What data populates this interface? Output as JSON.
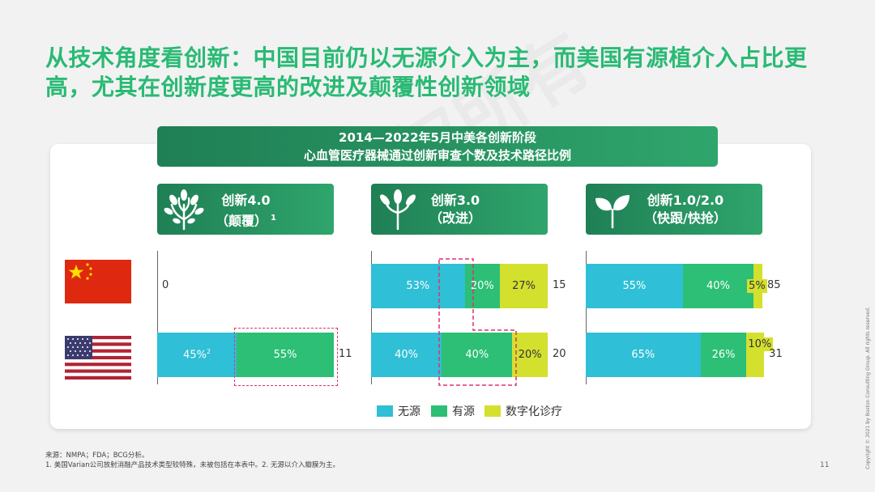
{
  "title": "从技术角度看创新：中国目前仍以无源介入为主，而美国有源植介入占比更高，尤其在创新度更高的改进及颠覆性创新领域",
  "banner": {
    "line1": "2014—2022年5月中美各创新阶段",
    "line2": "心血管医疗器械通过创新审查个数及技术路径比例"
  },
  "colors": {
    "passive": "#2fbfd6",
    "active": "#2cbf75",
    "digital": "#d4e02e",
    "title": "#29ba74",
    "highlight": "#e0316e"
  },
  "chart_data": {
    "type": "bar",
    "stacked": true,
    "orientation": "horizontal",
    "series_names": [
      "无源",
      "有源",
      "数字化诊疗"
    ],
    "groups": [
      {
        "header_line1": "创新4.0",
        "header_line2": "（颠覆）",
        "header_sup": "1",
        "icon": "tree-icon",
        "rows": [
          {
            "country": "China",
            "total": "0",
            "segments": []
          },
          {
            "country": "USA",
            "total": "11",
            "segments": [
              {
                "series": "无源",
                "value": 45,
                "label": "45%",
                "sup": "2"
              },
              {
                "series": "有源",
                "value": 55,
                "label": "55%"
              }
            ]
          }
        ]
      },
      {
        "header_line1": "创新3.0",
        "header_line2": "（改进）",
        "header_sup": "",
        "icon": "sprout-icon",
        "rows": [
          {
            "country": "China",
            "total": "15",
            "segments": [
              {
                "series": "无源",
                "value": 53,
                "label": "53%"
              },
              {
                "series": "有源",
                "value": 20,
                "label": "20%"
              },
              {
                "series": "数字化诊疗",
                "value": 27,
                "label": "27%"
              }
            ]
          },
          {
            "country": "USA",
            "total": "20",
            "segments": [
              {
                "series": "无源",
                "value": 40,
                "label": "40%"
              },
              {
                "series": "有源",
                "value": 40,
                "label": "40%"
              },
              {
                "series": "数字化诊疗",
                "value": 20,
                "label": "20%"
              }
            ]
          }
        ]
      },
      {
        "header_line1": "创新1.0/2.0",
        "header_line2": "（快跟/快抢）",
        "header_sup": "",
        "icon": "leaf-icon",
        "rows": [
          {
            "country": "China",
            "total": "85",
            "segments": [
              {
                "series": "无源",
                "value": 55,
                "label": "55%"
              },
              {
                "series": "有源",
                "value": 40,
                "label": "40%"
              },
              {
                "series": "数字化诊疗",
                "value": 5,
                "label": "5%"
              }
            ]
          },
          {
            "country": "USA",
            "total": "31",
            "segments": [
              {
                "series": "无源",
                "value": 65,
                "label": "65%"
              },
              {
                "series": "有源",
                "value": 26,
                "label": "26%"
              },
              {
                "series": "数字化诊疗",
                "value": 10,
                "label": "10%"
              }
            ]
          }
        ]
      }
    ]
  },
  "notes": {
    "source": "来源：NMPA；FDA；BCG分析。",
    "footnote": "1. 美国Varian公司放射消融产品技术类型较特殊，未被包括在本表中。2. 无源以介入瓣膜为主。"
  },
  "page_number": "11",
  "copyright": "Copyright © 2021 by Boston Consulting Group. All rights reserved.",
  "watermark": "BCG版权所有"
}
